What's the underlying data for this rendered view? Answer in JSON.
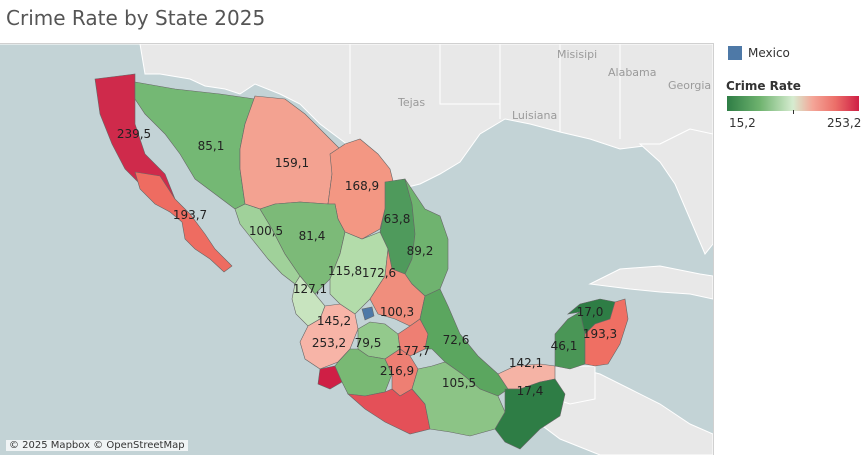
{
  "title": "Crime Rate by State 2025",
  "legend": {
    "category_label": "Mexico",
    "category_color": "#4e79a7",
    "color_title": "Crime Rate",
    "min_label": "15,2",
    "max_label": "253,2"
  },
  "attribution": "© 2025 Mapbox © OpenStreetMap",
  "background_labels": [
    "Misisipi",
    "Alabama",
    "Georgia",
    "Tejas",
    "Luisiana"
  ],
  "states": [
    {
      "value": "239,5",
      "color": "#cf2a4b"
    },
    {
      "value": "193,7",
      "color": "#ee6c61"
    },
    {
      "value": "85,1",
      "color": "#74b874"
    },
    {
      "value": "159,1",
      "color": "#f3a291"
    },
    {
      "value": "168,9",
      "color": "#f39783"
    },
    {
      "value": "63,8",
      "color": "#4f9a5c"
    },
    {
      "value": "89,2",
      "color": "#6fb36f"
    },
    {
      "value": "100,5",
      "color": "#a0d19a"
    },
    {
      "value": "81,4",
      "color": "#7cba78"
    },
    {
      "value": "115,8",
      "color": "#b3dcaa"
    },
    {
      "value": "172,6",
      "color": "#f08e7d"
    },
    {
      "value": "127,1",
      "color": "#c8e4bf"
    },
    {
      "value": "145,2",
      "color": "#f7b4a7"
    },
    {
      "value": "100,3",
      "color": "#93c98c"
    },
    {
      "value": "253,2",
      "color": "#cf1f45"
    },
    {
      "value": "79,5",
      "color": "#79b974"
    },
    {
      "value": "177,7",
      "color": "#ee7f73"
    },
    {
      "value": "72,6",
      "color": "#5ba65f"
    },
    {
      "value": "216,9",
      "color": "#e45058"
    },
    {
      "value": "105,5",
      "color": "#8cc486"
    },
    {
      "value": "142,1",
      "color": "#f5b3a5"
    },
    {
      "value": "17,4",
      "color": "#2e7d45"
    },
    {
      "value": "46,1",
      "color": "#4a9656"
    },
    {
      "value": "17,0",
      "color": "#2e7d45"
    },
    {
      "value": "193,3",
      "color": "#ef6f63"
    }
  ]
}
